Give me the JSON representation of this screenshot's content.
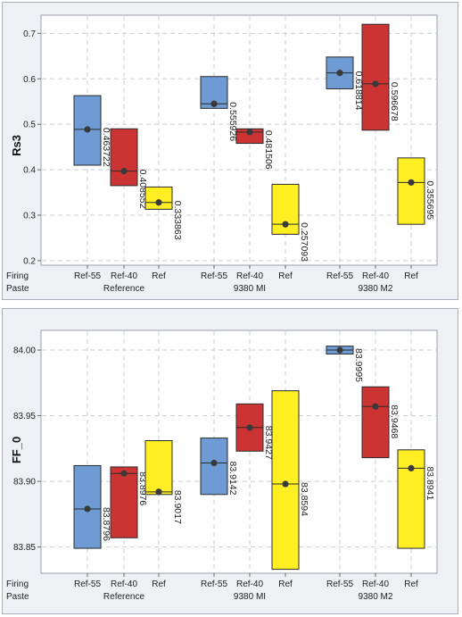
{
  "chart_data": [
    {
      "type": "floating-bar-with-mean",
      "ylabel": "Rs3",
      "ylim": [
        0.19,
        0.74
      ],
      "yticks": [
        "0.2",
        "0.3",
        "0.4",
        "0.5",
        "0.6",
        "0.7"
      ],
      "grid": true,
      "row_labels": [
        "Firing",
        "Paste"
      ],
      "groups": [
        "Reference",
        "9380 MI",
        "9380 M2"
      ],
      "categories": [
        "Ref-55",
        "Ref-40",
        "Ref"
      ],
      "category_colors": [
        "#6e9bd4",
        "#cc3333",
        "#ffee22"
      ],
      "points": [
        {
          "group": "Reference",
          "category": "Ref-55",
          "low": 0.41,
          "high": 0.563,
          "mean": 0.4887,
          "label": "0.463722"
        },
        {
          "group": "Reference",
          "category": "Ref-40",
          "low": 0.365,
          "high": 0.49,
          "mean": 0.397,
          "label": "0.408552"
        },
        {
          "group": "Reference",
          "category": "Ref",
          "low": 0.313,
          "high": 0.362,
          "mean": 0.328,
          "label": "0.333863"
        },
        {
          "group": "9380 MI",
          "category": "Ref-55",
          "low": 0.535,
          "high": 0.605,
          "mean": 0.545,
          "label": "0.555926"
        },
        {
          "group": "9380 MI",
          "category": "Ref-40",
          "low": 0.458,
          "high": 0.49,
          "mean": 0.483,
          "label": "0.481506"
        },
        {
          "group": "9380 MI",
          "category": "Ref",
          "low": 0.258,
          "high": 0.368,
          "mean": 0.28,
          "label": "0.257093"
        },
        {
          "group": "9380 M2",
          "category": "Ref-55",
          "low": 0.578,
          "high": 0.648,
          "mean": 0.613,
          "label": "0.618814"
        },
        {
          "group": "9380 M2",
          "category": "Ref-40",
          "low": 0.487,
          "high": 0.72,
          "mean": 0.589,
          "label": "0.596678"
        },
        {
          "group": "9380 M2",
          "category": "Ref",
          "low": 0.28,
          "high": 0.426,
          "mean": 0.372,
          "label": "0.355695"
        }
      ]
    },
    {
      "type": "floating-bar-with-mean",
      "ylabel": "FF_0",
      "ylim": [
        83.83,
        84.015
      ],
      "yticks": [
        "83.85",
        "83.90",
        "83.95",
        "84.00"
      ],
      "grid": true,
      "row_labels": [
        "Firing",
        "Paste"
      ],
      "groups": [
        "Reference",
        "9380 MI",
        "9380 M2"
      ],
      "categories": [
        "Ref-55",
        "Ref-40",
        "Ref"
      ],
      "category_colors": [
        "#6e9bd4",
        "#cc3333",
        "#ffee22"
      ],
      "points": [
        {
          "group": "Reference",
          "category": "Ref-55",
          "low": 83.849,
          "high": 83.912,
          "mean": 83.879,
          "label": "83.8796"
        },
        {
          "group": "Reference",
          "category": "Ref-40",
          "low": 83.857,
          "high": 83.911,
          "mean": 83.906,
          "label": "83.8976"
        },
        {
          "group": "Reference",
          "category": "Ref",
          "low": 83.89,
          "high": 83.931,
          "mean": 83.892,
          "label": "83.9017"
        },
        {
          "group": "9380 MI",
          "category": "Ref-55",
          "low": 83.89,
          "high": 83.933,
          "mean": 83.914,
          "label": "83.9142"
        },
        {
          "group": "9380 MI",
          "category": "Ref-40",
          "low": 83.923,
          "high": 83.959,
          "mean": 83.941,
          "label": "83.9427"
        },
        {
          "group": "9380 MI",
          "category": "Ref",
          "low": 83.833,
          "high": 83.969,
          "mean": 83.898,
          "label": "83.8594"
        },
        {
          "group": "9380 M2",
          "category": "Ref-55",
          "low": 83.997,
          "high": 84.003,
          "mean": 84.0,
          "label": "83.9995"
        },
        {
          "group": "9380 M2",
          "category": "Ref-40",
          "low": 83.918,
          "high": 83.972,
          "mean": 83.957,
          "label": "83.9468"
        },
        {
          "group": "9380 M2",
          "category": "Ref",
          "low": 83.849,
          "high": 83.924,
          "mean": 83.91,
          "label": "83.8941"
        }
      ]
    }
  ]
}
